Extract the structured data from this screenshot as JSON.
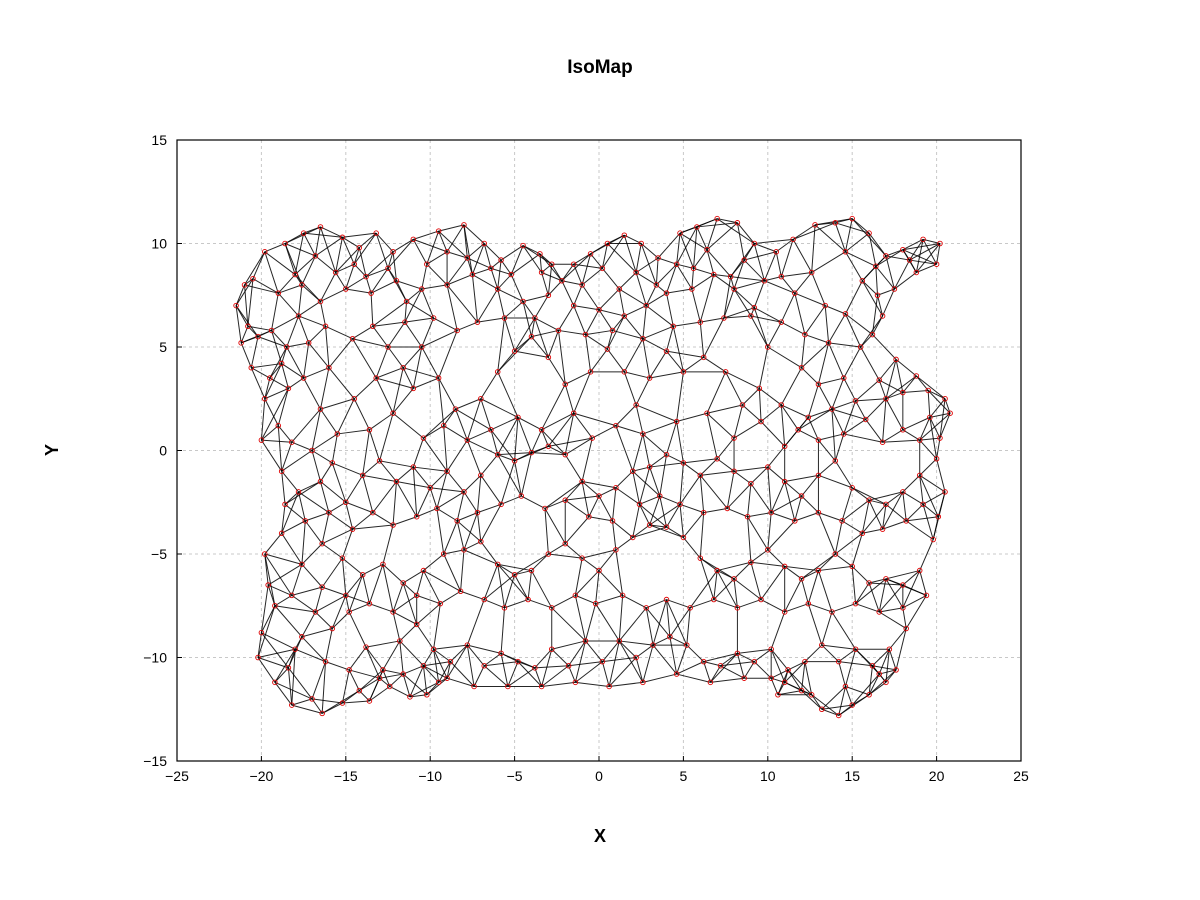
{
  "chart_data": {
    "type": "scatter",
    "title": "IsoMap",
    "xlabel": "X",
    "ylabel": "Y",
    "xlim": [
      -25,
      25
    ],
    "ylim": [
      -15,
      15
    ],
    "xticks": [
      -25,
      -20,
      -15,
      -10,
      -5,
      0,
      5,
      10,
      15,
      20,
      25
    ],
    "yticks": [
      -15,
      -10,
      -5,
      0,
      5,
      10,
      15
    ],
    "xtick_labels": [
      "−25",
      "−20",
      "−15",
      "−10",
      "−5",
      "0",
      "5",
      "10",
      "15",
      "20",
      "25"
    ],
    "ytick_labels": [
      "−15",
      "−10",
      "−5",
      "0",
      "5",
      "10",
      "15"
    ],
    "grid": true,
    "legend": "none",
    "colors": {
      "points": "#e00000",
      "edges": "#000000",
      "grid": "#c8c8c8"
    },
    "points": [
      [
        -21.5,
        7.0
      ],
      [
        -21.0,
        8.0
      ],
      [
        -20.5,
        8.3
      ],
      [
        -20.8,
        6.0
      ],
      [
        -21.2,
        5.2
      ],
      [
        -20.6,
        4.0
      ],
      [
        -19.8,
        2.5
      ],
      [
        -20.0,
        0.5
      ],
      [
        -19.0,
        1.2
      ],
      [
        -18.2,
        0.4
      ],
      [
        -19.8,
        9.6
      ],
      [
        -18.6,
        10.0
      ],
      [
        -17.5,
        10.5
      ],
      [
        -16.5,
        10.8
      ],
      [
        -15.2,
        10.3
      ],
      [
        -14.2,
        9.8
      ],
      [
        -13.2,
        10.5
      ],
      [
        -12.2,
        9.6
      ],
      [
        -11.0,
        10.2
      ],
      [
        -9.5,
        10.6
      ],
      [
        -8.0,
        10.9
      ],
      [
        -6.8,
        10.0
      ],
      [
        -5.8,
        9.2
      ],
      [
        -4.5,
        9.9
      ],
      [
        -3.5,
        9.5
      ],
      [
        -2.8,
        9.0
      ],
      [
        -1.5,
        9.0
      ],
      [
        -0.5,
        9.5
      ],
      [
        0.5,
        10.0
      ],
      [
        1.5,
        10.4
      ],
      [
        2.5,
        10.0
      ],
      [
        3.5,
        9.3
      ],
      [
        4.8,
        10.5
      ],
      [
        5.8,
        10.8
      ],
      [
        7.0,
        11.2
      ],
      [
        8.2,
        11.0
      ],
      [
        9.2,
        10.0
      ],
      [
        10.5,
        9.6
      ],
      [
        11.5,
        10.2
      ],
      [
        12.8,
        10.9
      ],
      [
        14.0,
        11.0
      ],
      [
        15.0,
        11.2
      ],
      [
        16.0,
        10.5
      ],
      [
        17.0,
        9.4
      ],
      [
        18.0,
        9.7
      ],
      [
        19.2,
        10.2
      ],
      [
        20.2,
        10.0
      ],
      [
        20.0,
        9.0
      ],
      [
        18.8,
        8.6
      ],
      [
        17.5,
        7.8
      ],
      [
        16.5,
        7.5
      ],
      [
        16.8,
        6.5
      ],
      [
        15.5,
        5.0
      ],
      [
        14.5,
        3.5
      ],
      [
        13.0,
        3.2
      ],
      [
        12.0,
        4.0
      ],
      [
        10.0,
        5.0
      ],
      [
        9.0,
        6.5
      ],
      [
        8.0,
        7.8
      ],
      [
        6.8,
        8.5
      ],
      [
        5.5,
        7.8
      ],
      [
        4.0,
        7.6
      ],
      [
        2.8,
        7.0
      ],
      [
        1.5,
        6.5
      ],
      [
        0.0,
        6.8
      ],
      [
        -1.5,
        7.0
      ],
      [
        -3.0,
        7.5
      ],
      [
        -4.5,
        7.2
      ],
      [
        -6.0,
        7.8
      ],
      [
        -7.5,
        8.5
      ],
      [
        -9.0,
        8.0
      ],
      [
        -10.5,
        7.8
      ],
      [
        -12.0,
        8.2
      ],
      [
        -13.5,
        7.6
      ],
      [
        -15.0,
        7.8
      ],
      [
        -16.5,
        7.2
      ],
      [
        -17.8,
        6.5
      ],
      [
        -18.5,
        5.0
      ],
      [
        -17.5,
        3.5
      ],
      [
        -16.5,
        2.0
      ],
      [
        -15.5,
        0.8
      ],
      [
        -14.5,
        2.5
      ],
      [
        -13.2,
        3.5
      ],
      [
        -12.5,
        5.0
      ],
      [
        -11.5,
        6.2
      ],
      [
        -10.5,
        5.0
      ],
      [
        -9.5,
        3.5
      ],
      [
        -8.5,
        2.0
      ],
      [
        -7.8,
        0.5
      ],
      [
        -7.0,
        2.5
      ],
      [
        -6.0,
        3.8
      ],
      [
        -5.0,
        4.8
      ],
      [
        -4.0,
        5.5
      ],
      [
        -3.0,
        4.5
      ],
      [
        -2.0,
        3.2
      ],
      [
        -1.5,
        1.8
      ],
      [
        -0.5,
        3.8
      ],
      [
        0.5,
        4.9
      ],
      [
        1.5,
        3.8
      ],
      [
        2.2,
        2.2
      ],
      [
        3.0,
        3.5
      ],
      [
        4.0,
        4.8
      ],
      [
        5.0,
        3.8
      ],
      [
        6.2,
        4.5
      ],
      [
        7.5,
        3.8
      ],
      [
        8.5,
        2.2
      ],
      [
        9.5,
        3.0
      ],
      [
        10.8,
        2.2
      ],
      [
        11.8,
        1.0
      ],
      [
        13.0,
        0.5
      ],
      [
        14.5,
        0.8
      ],
      [
        15.8,
        1.5
      ],
      [
        17.0,
        2.5
      ],
      [
        18.0,
        2.8
      ],
      [
        19.5,
        2.9
      ],
      [
        20.5,
        2.5
      ],
      [
        20.8,
        1.8
      ],
      [
        20.2,
        0.6
      ],
      [
        19.0,
        0.5
      ],
      [
        18.0,
        1.0
      ],
      [
        -18.8,
        -1.0
      ],
      [
        -17.8,
        -2.0
      ],
      [
        -16.5,
        -1.5
      ],
      [
        -15.0,
        -2.5
      ],
      [
        -14.0,
        -1.2
      ],
      [
        -13.0,
        -0.5
      ],
      [
        -12.0,
        -1.5
      ],
      [
        -11.0,
        -0.8
      ],
      [
        -10.0,
        -1.8
      ],
      [
        -9.0,
        -1.0
      ],
      [
        -8.0,
        -2.0
      ],
      [
        -7.0,
        -1.2
      ],
      [
        -6.0,
        -0.2
      ],
      [
        -5.0,
        -0.5
      ],
      [
        -4.0,
        -0.1
      ],
      [
        -3.0,
        0.2
      ],
      [
        -2.0,
        -0.2
      ],
      [
        -1.0,
        -1.5
      ],
      [
        0.0,
        -2.2
      ],
      [
        1.0,
        -1.8
      ],
      [
        2.0,
        -1.0
      ],
      [
        3.0,
        -0.8
      ],
      [
        4.0,
        -0.2
      ],
      [
        5.0,
        -0.6
      ],
      [
        6.0,
        -1.2
      ],
      [
        7.0,
        -0.4
      ],
      [
        8.0,
        -1.0
      ],
      [
        9.0,
        -1.6
      ],
      [
        10.0,
        -0.8
      ],
      [
        11.0,
        -1.5
      ],
      [
        12.0,
        -2.2
      ],
      [
        13.0,
        -1.2
      ],
      [
        14.0,
        -0.5
      ],
      [
        15.0,
        -1.8
      ],
      [
        16.0,
        -2.4
      ],
      [
        17.0,
        -2.6
      ],
      [
        18.0,
        -2.0
      ],
      [
        19.0,
        -1.2
      ],
      [
        20.0,
        -0.4
      ],
      [
        20.5,
        -2.0
      ],
      [
        -19.8,
        -5.0
      ],
      [
        -18.8,
        -4.0
      ],
      [
        -17.6,
        -5.5
      ],
      [
        -16.4,
        -4.5
      ],
      [
        -15.2,
        -5.2
      ],
      [
        -14.0,
        -6.0
      ],
      [
        -12.8,
        -5.5
      ],
      [
        -11.6,
        -6.4
      ],
      [
        -10.4,
        -5.8
      ],
      [
        -9.2,
        -5.0
      ],
      [
        -8.0,
        -4.8
      ],
      [
        -7.0,
        -4.4
      ],
      [
        -6.0,
        -5.5
      ],
      [
        -5.0,
        -6.0
      ],
      [
        -4.0,
        -5.8
      ],
      [
        -3.0,
        -5.0
      ],
      [
        -2.0,
        -4.5
      ],
      [
        -1.0,
        -5.2
      ],
      [
        0.0,
        -5.8
      ],
      [
        1.0,
        -4.8
      ],
      [
        2.0,
        -4.2
      ],
      [
        3.0,
        -3.6
      ],
      [
        4.0,
        -3.7
      ],
      [
        5.0,
        -4.2
      ],
      [
        6.0,
        -5.2
      ],
      [
        7.0,
        -5.8
      ],
      [
        8.0,
        -6.2
      ],
      [
        9.0,
        -5.4
      ],
      [
        10.0,
        -4.8
      ],
      [
        11.0,
        -5.6
      ],
      [
        12.0,
        -6.2
      ],
      [
        13.0,
        -5.8
      ],
      [
        14.0,
        -5.0
      ],
      [
        15.0,
        -5.6
      ],
      [
        16.0,
        -6.4
      ],
      [
        17.0,
        -6.2
      ],
      [
        18.0,
        -6.5
      ],
      [
        19.0,
        -5.8
      ],
      [
        19.8,
        -4.3
      ],
      [
        20.1,
        -3.2
      ],
      [
        -20.0,
        -8.8
      ],
      [
        -19.2,
        -7.5
      ],
      [
        -18.4,
        -10.5
      ],
      [
        -17.6,
        -9.0
      ],
      [
        -16.8,
        -7.8
      ],
      [
        -15.8,
        -8.6
      ],
      [
        -14.8,
        -7.8
      ],
      [
        -13.8,
        -9.5
      ],
      [
        -12.8,
        -10.6
      ],
      [
        -11.8,
        -9.2
      ],
      [
        -10.8,
        -8.4
      ],
      [
        -9.8,
        -9.6
      ],
      [
        -8.8,
        -10.2
      ],
      [
        -7.8,
        -9.4
      ],
      [
        -6.8,
        -10.4
      ],
      [
        -5.8,
        -9.8
      ],
      [
        -4.8,
        -10.2
      ],
      [
        -3.8,
        -10.5
      ],
      [
        -2.8,
        -9.6
      ],
      [
        -1.8,
        -10.4
      ],
      [
        -0.8,
        -9.2
      ],
      [
        0.2,
        -10.2
      ],
      [
        1.2,
        -9.2
      ],
      [
        2.2,
        -10.0
      ],
      [
        3.2,
        -9.4
      ],
      [
        4.2,
        -9.0
      ],
      [
        5.2,
        -9.4
      ],
      [
        6.2,
        -10.2
      ],
      [
        7.2,
        -10.4
      ],
      [
        8.2,
        -9.8
      ],
      [
        9.2,
        -10.2
      ],
      [
        10.2,
        -9.6
      ],
      [
        11.2,
        -10.6
      ],
      [
        12.2,
        -10.2
      ],
      [
        13.2,
        -9.4
      ],
      [
        14.2,
        -10.2
      ],
      [
        15.2,
        -9.6
      ],
      [
        16.2,
        -10.4
      ],
      [
        17.2,
        -9.6
      ],
      [
        18.2,
        -8.6
      ],
      [
        -19.2,
        -11.2
      ],
      [
        -18.2,
        -12.3
      ],
      [
        -17.0,
        -12.0
      ],
      [
        -16.4,
        -12.7
      ],
      [
        -15.2,
        -12.2
      ],
      [
        -14.2,
        -11.6
      ],
      [
        -13.6,
        -12.1
      ],
      [
        -12.4,
        -11.4
      ],
      [
        -11.2,
        -11.9
      ],
      [
        -10.2,
        -11.8
      ],
      [
        -9.5,
        -11.2
      ],
      [
        13.2,
        -12.5
      ],
      [
        14.2,
        -12.8
      ],
      [
        15.0,
        -12.3
      ],
      [
        16.0,
        -11.8
      ],
      [
        17.0,
        -11.2
      ],
      [
        12.0,
        -11.6
      ],
      [
        11.0,
        -11.2
      ],
      [
        10.2,
        -11.0
      ],
      [
        17.6,
        -10.6
      ],
      [
        -19.5,
        3.5
      ],
      [
        -20.2,
        5.5
      ],
      [
        -18.0,
        8.5
      ],
      [
        -16.8,
        9.4
      ],
      [
        -14.5,
        9.0
      ],
      [
        -12.5,
        8.8
      ],
      [
        -10.2,
        9.0
      ],
      [
        -7.8,
        9.3
      ],
      [
        -5.2,
        8.5
      ],
      [
        -2.2,
        8.2
      ],
      [
        0.2,
        8.8
      ],
      [
        2.2,
        8.6
      ],
      [
        4.6,
        9.0
      ],
      [
        6.4,
        9.7
      ],
      [
        8.6,
        9.2
      ],
      [
        10.8,
        8.4
      ],
      [
        12.6,
        8.6
      ],
      [
        14.6,
        9.6
      ],
      [
        16.4,
        8.9
      ],
      [
        18.4,
        9.2
      ],
      [
        -18.4,
        3.0
      ],
      [
        -17.2,
        5.2
      ],
      [
        -16.0,
        4.0
      ],
      [
        -14.6,
        5.4
      ],
      [
        -13.4,
        6.0
      ],
      [
        -11.6,
        4.0
      ],
      [
        -11.0,
        3.0
      ],
      [
        -9.8,
        6.4
      ],
      [
        -8.4,
        5.8
      ],
      [
        -7.2,
        6.2
      ],
      [
        -5.6,
        6.4
      ],
      [
        -3.8,
        6.4
      ],
      [
        -2.4,
        5.8
      ],
      [
        -0.8,
        5.6
      ],
      [
        0.8,
        5.8
      ],
      [
        2.6,
        5.4
      ],
      [
        4.4,
        6.0
      ],
      [
        6.0,
        6.2
      ],
      [
        7.4,
        6.4
      ],
      [
        9.2,
        6.9
      ],
      [
        10.8,
        6.2
      ],
      [
        12.2,
        5.6
      ],
      [
        13.6,
        5.2
      ],
      [
        14.6,
        6.6
      ],
      [
        16.2,
        5.6
      ],
      [
        17.6,
        4.4
      ],
      [
        18.8,
        3.6
      ],
      [
        16.6,
        3.4
      ],
      [
        15.2,
        2.4
      ],
      [
        13.8,
        2.0
      ],
      [
        -17.4,
        -3.4
      ],
      [
        -16.0,
        -3.0
      ],
      [
        -14.6,
        -3.8
      ],
      [
        -13.4,
        -3.0
      ],
      [
        -12.2,
        -3.6
      ],
      [
        -10.8,
        -3.2
      ],
      [
        -9.6,
        -2.8
      ],
      [
        -8.4,
        -3.4
      ],
      [
        -7.2,
        -3.0
      ],
      [
        -5.8,
        -2.6
      ],
      [
        -4.6,
        -2.2
      ],
      [
        -3.2,
        -2.8
      ],
      [
        -2.0,
        -2.4
      ],
      [
        -0.6,
        -3.2
      ],
      [
        0.8,
        -3.4
      ],
      [
        2.4,
        -2.6
      ],
      [
        3.6,
        -2.2
      ],
      [
        4.8,
        -2.6
      ],
      [
        6.2,
        -3.0
      ],
      [
        7.6,
        -2.8
      ],
      [
        8.8,
        -3.2
      ],
      [
        10.2,
        -3.0
      ],
      [
        11.6,
        -3.4
      ],
      [
        13.0,
        -3.0
      ],
      [
        14.4,
        -3.4
      ],
      [
        15.6,
        -4.0
      ],
      [
        16.8,
        -3.8
      ],
      [
        18.2,
        -3.4
      ],
      [
        19.2,
        -2.6
      ],
      [
        -18.6,
        -2.6
      ],
      [
        -19.6,
        -6.5
      ],
      [
        -18.2,
        -7.0
      ],
      [
        -16.4,
        -6.6
      ],
      [
        -15.0,
        -7.0
      ],
      [
        -13.6,
        -7.4
      ],
      [
        -12.2,
        -7.8
      ],
      [
        -10.8,
        -7.0
      ],
      [
        -9.4,
        -7.4
      ],
      [
        -8.2,
        -6.8
      ],
      [
        -6.8,
        -7.2
      ],
      [
        -5.6,
        -7.6
      ],
      [
        -4.2,
        -7.2
      ],
      [
        -2.8,
        -7.6
      ],
      [
        -1.4,
        -7.0
      ],
      [
        -0.2,
        -7.4
      ],
      [
        1.4,
        -7.0
      ],
      [
        2.8,
        -7.6
      ],
      [
        4.0,
        -7.2
      ],
      [
        5.4,
        -7.6
      ],
      [
        6.8,
        -7.2
      ],
      [
        8.2,
        -7.6
      ],
      [
        9.6,
        -7.2
      ],
      [
        11.0,
        -7.8
      ],
      [
        12.4,
        -7.4
      ],
      [
        13.8,
        -7.8
      ],
      [
        15.2,
        -7.4
      ],
      [
        16.6,
        -7.8
      ],
      [
        18.0,
        -7.6
      ],
      [
        19.4,
        -7.0
      ],
      [
        -20.2,
        -10.0
      ],
      [
        -19.0,
        7.6
      ],
      [
        -19.4,
        5.8
      ],
      [
        -18.8,
        4.2
      ],
      [
        -17.6,
        8.0
      ],
      [
        -16.2,
        6.0
      ],
      [
        -15.6,
        8.6
      ],
      [
        -13.8,
        8.4
      ],
      [
        -11.4,
        7.2
      ],
      [
        -9.0,
        9.6
      ],
      [
        -6.4,
        8.8
      ],
      [
        -3.4,
        8.6
      ],
      [
        -1.0,
        8.0
      ],
      [
        1.2,
        7.8
      ],
      [
        3.4,
        8.0
      ],
      [
        5.6,
        8.8
      ],
      [
        7.8,
        8.4
      ],
      [
        9.8,
        8.2
      ],
      [
        11.6,
        7.6
      ],
      [
        13.4,
        7.0
      ],
      [
        15.6,
        8.2
      ],
      [
        -17.0,
        0.0
      ],
      [
        -15.8,
        -0.6
      ],
      [
        -13.6,
        1.0
      ],
      [
        -12.2,
        1.8
      ],
      [
        -10.4,
        0.6
      ],
      [
        -9.2,
        1.2
      ],
      [
        -6.4,
        1.0
      ],
      [
        -4.8,
        1.6
      ],
      [
        -3.4,
        1.0
      ],
      [
        -0.4,
        0.6
      ],
      [
        1.0,
        1.2
      ],
      [
        2.6,
        0.8
      ],
      [
        4.6,
        1.4
      ],
      [
        6.4,
        1.8
      ],
      [
        8.0,
        0.6
      ],
      [
        9.6,
        1.4
      ],
      [
        11.0,
        0.2
      ],
      [
        12.4,
        1.6
      ],
      [
        16.8,
        0.4
      ],
      [
        19.6,
        1.6
      ],
      [
        -18.0,
        -9.6
      ],
      [
        -16.2,
        -10.2
      ],
      [
        -14.8,
        -10.6
      ],
      [
        -13.0,
        -11.0
      ],
      [
        -11.6,
        -10.8
      ],
      [
        -10.4,
        -10.4
      ],
      [
        -9.0,
        -11.0
      ],
      [
        -7.4,
        -11.4
      ],
      [
        -5.4,
        -11.4
      ],
      [
        -3.4,
        -11.4
      ],
      [
        -1.4,
        -11.2
      ],
      [
        0.6,
        -11.4
      ],
      [
        2.6,
        -11.2
      ],
      [
        4.6,
        -10.8
      ],
      [
        6.6,
        -11.2
      ],
      [
        8.6,
        -11.0
      ],
      [
        10.6,
        -11.8
      ],
      [
        12.6,
        -11.8
      ],
      [
        14.6,
        -11.4
      ],
      [
        16.6,
        -10.8
      ]
    ]
  }
}
